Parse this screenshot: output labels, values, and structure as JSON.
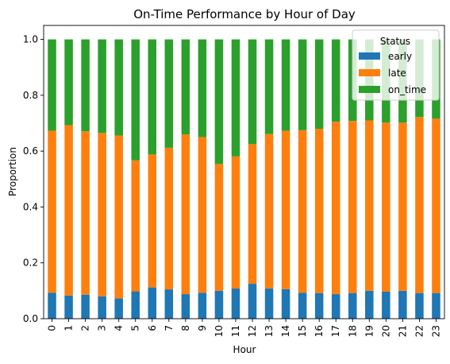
{
  "chart_data": {
    "type": "bar",
    "stacked": true,
    "title": "On-Time Performance by Hour of Day",
    "xlabel": "Hour",
    "ylabel": "Proportion",
    "ylim": [
      0,
      1.05
    ],
    "yticks": [
      "0.0",
      "0.2",
      "0.4",
      "0.6",
      "0.8",
      "1.0"
    ],
    "categories": [
      "0",
      "1",
      "2",
      "3",
      "4",
      "5",
      "6",
      "7",
      "8",
      "9",
      "10",
      "11",
      "12",
      "13",
      "14",
      "15",
      "16",
      "17",
      "18",
      "19",
      "20",
      "21",
      "22",
      "23"
    ],
    "legend": {
      "title": "Status",
      "position": "top-right"
    },
    "series": [
      {
        "name": "early",
        "color": "#1f77b4",
        "values": [
          0.093,
          0.083,
          0.086,
          0.08,
          0.073,
          0.098,
          0.112,
          0.105,
          0.088,
          0.093,
          0.1,
          0.108,
          0.125,
          0.108,
          0.106,
          0.093,
          0.092,
          0.088,
          0.092,
          0.1,
          0.097,
          0.1,
          0.092,
          0.092
        ]
      },
      {
        "name": "late",
        "color": "#ff7f0e",
        "values": [
          0.58,
          0.61,
          0.585,
          0.585,
          0.583,
          0.469,
          0.476,
          0.507,
          0.572,
          0.557,
          0.454,
          0.473,
          0.5,
          0.553,
          0.567,
          0.582,
          0.588,
          0.617,
          0.616,
          0.61,
          0.605,
          0.602,
          0.63,
          0.624
        ]
      },
      {
        "name": "on_time",
        "color": "#2ca02c",
        "values": [
          0.327,
          0.307,
          0.329,
          0.335,
          0.344,
          0.433,
          0.412,
          0.388,
          0.34,
          0.35,
          0.446,
          0.419,
          0.375,
          0.339,
          0.327,
          0.325,
          0.32,
          0.295,
          0.292,
          0.29,
          0.298,
          0.298,
          0.278,
          0.284
        ]
      }
    ]
  }
}
